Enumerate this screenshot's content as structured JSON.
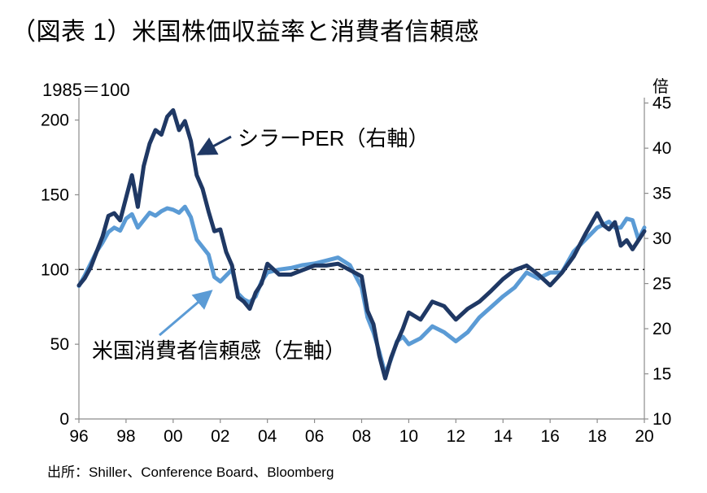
{
  "title": "（図表 1）米国株価収益率と消費者信頼感",
  "source": "出所：Shiller、Conference Board、Bloomberg",
  "chart_data": {
    "type": "line",
    "left_axis": {
      "label": "1985＝100",
      "min": 0,
      "max": 215,
      "ticks": [
        0,
        50,
        100,
        150,
        200
      ]
    },
    "right_axis": {
      "label": "倍",
      "min": 10,
      "max": 45.6,
      "ticks": [
        10,
        15,
        20,
        25,
        30,
        35,
        40,
        45
      ]
    },
    "x_axis": {
      "min": 1996,
      "max": 2020,
      "ticks": [
        {
          "v": 1996,
          "label": "96"
        },
        {
          "v": 1998,
          "label": "98"
        },
        {
          "v": 2000,
          "label": "00"
        },
        {
          "v": 2002,
          "label": "02"
        },
        {
          "v": 2004,
          "label": "04"
        },
        {
          "v": 2006,
          "label": "06"
        },
        {
          "v": 2008,
          "label": "08"
        },
        {
          "v": 2010,
          "label": "10"
        },
        {
          "v": 2012,
          "label": "12"
        },
        {
          "v": 2014,
          "label": "14"
        },
        {
          "v": 2016,
          "label": "16"
        },
        {
          "v": 2018,
          "label": "18"
        },
        {
          "v": 2020,
          "label": "20"
        }
      ]
    },
    "reference_line": {
      "axis": "left",
      "value": 100,
      "style": "dashed"
    },
    "series": [
      {
        "name": "シラーPER（右軸）",
        "axis": "right",
        "color": "#1f3864",
        "x": [
          1996.0,
          1996.25,
          1996.5,
          1996.75,
          1997.0,
          1997.25,
          1997.5,
          1997.75,
          1998.0,
          1998.25,
          1998.5,
          1998.75,
          1999.0,
          1999.25,
          1999.5,
          1999.75,
          2000.0,
          2000.25,
          2000.5,
          2000.75,
          2001.0,
          2001.25,
          2001.5,
          2001.75,
          2002.0,
          2002.25,
          2002.5,
          2002.75,
          2003.0,
          2003.25,
          2003.5,
          2003.75,
          2004.0,
          2004.5,
          2005.0,
          2005.5,
          2006.0,
          2006.5,
          2007.0,
          2007.5,
          2008.0,
          2008.25,
          2008.5,
          2008.75,
          2009.0,
          2009.25,
          2009.5,
          2009.75,
          2010.0,
          2010.5,
          2011.0,
          2011.5,
          2012.0,
          2012.5,
          2013.0,
          2013.5,
          2014.0,
          2014.5,
          2015.0,
          2015.5,
          2016.0,
          2016.5,
          2017.0,
          2017.5,
          2018.0,
          2018.25,
          2018.5,
          2018.75,
          2019.0,
          2019.25,
          2019.5,
          2019.75,
          2020.0
        ],
        "values": [
          24.8,
          25.6,
          26.8,
          28.5,
          30.2,
          32.5,
          32.8,
          32.0,
          34.5,
          37.0,
          33.5,
          38.0,
          40.5,
          42.0,
          41.5,
          43.5,
          44.2,
          42.0,
          43.0,
          40.8,
          37.0,
          35.5,
          33.0,
          30.8,
          31.0,
          28.5,
          27.0,
          23.5,
          23.0,
          22.2,
          24.0,
          25.0,
          27.2,
          26.0,
          26.0,
          26.5,
          27.0,
          27.0,
          27.2,
          26.5,
          25.8,
          22.0,
          20.5,
          17.0,
          14.5,
          16.8,
          18.5,
          20.0,
          21.8,
          21.0,
          23.0,
          22.5,
          21.0,
          22.2,
          23.0,
          24.2,
          25.5,
          26.5,
          27.0,
          26.0,
          24.8,
          26.2,
          28.0,
          30.5,
          32.8,
          31.5,
          31.0,
          31.8,
          29.2,
          29.8,
          28.8,
          29.8,
          30.8
        ]
      },
      {
        "name": "米国消費者信頼感（左軸）",
        "axis": "left",
        "color": "#5b9bd5",
        "x": [
          1996.0,
          1996.25,
          1996.5,
          1996.75,
          1997.0,
          1997.25,
          1997.5,
          1997.75,
          1998.0,
          1998.25,
          1998.5,
          1998.75,
          1999.0,
          1999.25,
          1999.5,
          1999.75,
          2000.0,
          2000.25,
          2000.5,
          2000.75,
          2001.0,
          2001.25,
          2001.5,
          2001.75,
          2002.0,
          2002.25,
          2002.5,
          2002.75,
          2003.0,
          2003.25,
          2003.5,
          2003.75,
          2004.0,
          2004.5,
          2005.0,
          2005.5,
          2006.0,
          2006.5,
          2007.0,
          2007.5,
          2008.0,
          2008.25,
          2008.5,
          2008.75,
          2009.0,
          2009.25,
          2009.5,
          2009.75,
          2010.0,
          2010.5,
          2011.0,
          2011.5,
          2012.0,
          2012.5,
          2013.0,
          2013.5,
          2014.0,
          2014.5,
          2015.0,
          2015.5,
          2016.0,
          2016.5,
          2017.0,
          2017.5,
          2018.0,
          2018.25,
          2018.5,
          2018.75,
          2019.0,
          2019.25,
          2019.5,
          2019.75,
          2020.0
        ],
        "values": [
          89,
          96,
          104,
          112,
          118,
          125,
          128,
          126,
          134,
          137,
          128,
          133,
          138,
          136,
          139,
          141,
          140,
          138,
          142,
          135,
          120,
          115,
          110,
          95,
          92,
          96,
          100,
          84,
          80,
          78,
          82,
          92,
          98,
          100,
          101,
          103,
          104,
          106,
          108,
          103,
          88,
          68,
          58,
          45,
          30,
          40,
          52,
          55,
          50,
          54,
          62,
          58,
          52,
          58,
          68,
          75,
          82,
          88,
          98,
          94,
          98,
          98,
          112,
          120,
          128,
          130,
          132,
          128,
          128,
          134,
          133,
          120,
          128
        ]
      }
    ],
    "annotations": [
      {
        "text": "シラーPER（右軸）",
        "points_to": "series-1"
      },
      {
        "text": "米国消費者信頼感（左軸）",
        "points_to": "series-2"
      }
    ]
  }
}
